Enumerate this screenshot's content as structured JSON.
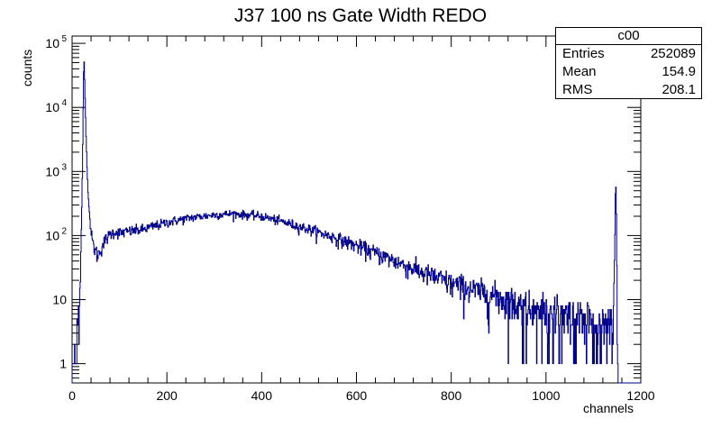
{
  "chart_data": {
    "type": "histogram",
    "title": "J37 100 ns Gate Width REDO",
    "xlabel": "channels",
    "ylabel": "counts",
    "xlim": [
      0,
      1200
    ],
    "ylim": [
      0.5,
      130000
    ],
    "y_scale": "log",
    "x_ticks": [
      0,
      200,
      400,
      600,
      800,
      1000,
      1200
    ],
    "y_ticks": [
      {
        "value": 1,
        "label": "1"
      },
      {
        "value": 10,
        "label": "10"
      },
      {
        "value": 100,
        "label": "10",
        "sup": "2"
      },
      {
        "value": 1000,
        "label": "10",
        "sup": "3"
      },
      {
        "value": 10000,
        "label": "10",
        "sup": "4"
      },
      {
        "value": 100000,
        "label": "10",
        "sup": "5"
      }
    ],
    "line_color": "#00008b",
    "profile": [
      [
        0,
        0.5
      ],
      [
        5,
        1.5
      ],
      [
        10,
        3
      ],
      [
        15,
        8
      ],
      [
        18,
        30
      ],
      [
        21,
        400
      ],
      [
        23,
        5000
      ],
      [
        25,
        70000
      ],
      [
        27,
        20000
      ],
      [
        30,
        2500
      ],
      [
        33,
        600
      ],
      [
        36,
        250
      ],
      [
        40,
        110
      ],
      [
        45,
        70
      ],
      [
        50,
        55
      ],
      [
        55,
        50
      ],
      [
        60,
        60
      ],
      [
        70,
        85
      ],
      [
        80,
        105
      ],
      [
        90,
        115
      ],
      [
        100,
        110
      ],
      [
        150,
        125
      ],
      [
        200,
        160
      ],
      [
        250,
        190
      ],
      [
        300,
        210
      ],
      [
        340,
        220
      ],
      [
        400,
        200
      ],
      [
        450,
        160
      ],
      [
        500,
        125
      ],
      [
        550,
        95
      ],
      [
        600,
        70
      ],
      [
        650,
        50
      ],
      [
        700,
        35
      ],
      [
        750,
        25
      ],
      [
        800,
        18
      ],
      [
        850,
        14
      ],
      [
        900,
        11
      ],
      [
        950,
        8
      ],
      [
        1000,
        6
      ],
      [
        1050,
        5
      ],
      [
        1100,
        4
      ],
      [
        1140,
        4
      ],
      [
        1143,
        8
      ],
      [
        1145,
        60
      ],
      [
        1147,
        900
      ],
      [
        1149,
        130
      ],
      [
        1151,
        0.5
      ],
      [
        1200,
        0.5
      ]
    ],
    "stats_box": {
      "name": "c00",
      "entries_label": "Entries",
      "entries": "252089",
      "mean_label": "Mean",
      "mean": "154.9",
      "rms_label": "RMS",
      "rms": "208.1"
    }
  }
}
